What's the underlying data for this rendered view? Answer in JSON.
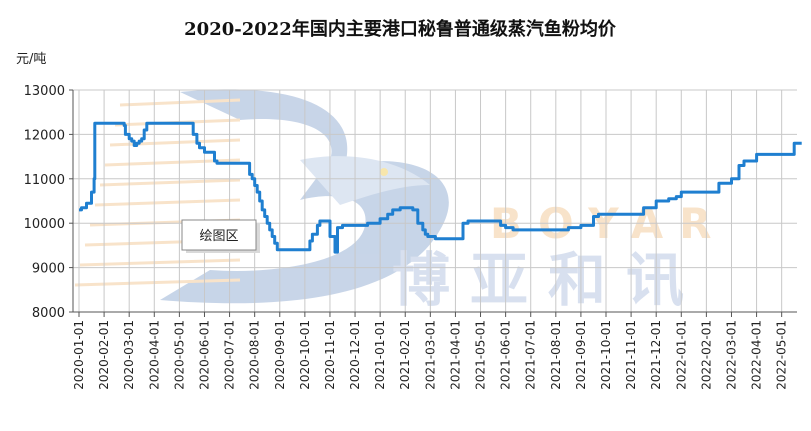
{
  "chart_data": {
    "type": "line",
    "title": "2020-2022年国内主要港口秘鲁普通级蒸汽鱼粉均价",
    "ylabel": "元/吨",
    "ylim": [
      8000,
      13000
    ],
    "yticks": [
      8000,
      9000,
      10000,
      11000,
      12000,
      13000
    ],
    "categories": [
      "2020-01-01",
      "2020-02-01",
      "2020-03-01",
      "2020-04-01",
      "2020-05-01",
      "2020-06-01",
      "2020-07-01",
      "2020-08-01",
      "2020-09-01",
      "2020-10-01",
      "2020-11-01",
      "2020-12-01",
      "2021-01-01",
      "2021-02-01",
      "2021-03-01",
      "2021-04-01",
      "2021-05-01",
      "2021-06-01",
      "2021-07-01",
      "2021-08-01",
      "2021-09-01",
      "2021-10-01",
      "2021-11-01",
      "2021-12-01",
      "2022-01-01",
      "2022-02-01",
      "2022-03-01",
      "2022-04-01",
      "2022-05-01"
    ],
    "grid": true,
    "color": "#1f7fd0",
    "series": [
      {
        "x": [
          0,
          0.1,
          0.3,
          0.5,
          0.6,
          0.63,
          0.7,
          1.0,
          1.5,
          1.7,
          1.8,
          1.85,
          2.0,
          2.1,
          2.2,
          2.3,
          2.4,
          2.5,
          2.6,
          2.7,
          2.8,
          3.0,
          3.5,
          4.0,
          4.5,
          4.55,
          4.7,
          4.8,
          5.0,
          5.3,
          5.4,
          5.5,
          6.0,
          6.3,
          6.8,
          6.9,
          7.0,
          7.1,
          7.2,
          7.3,
          7.4,
          7.5,
          7.6,
          7.7,
          7.8,
          7.9,
          8.0,
          8.3,
          8.5,
          8.8,
          9.0,
          9.2,
          9.3,
          9.5,
          9.6,
          9.8,
          10.0,
          10.2,
          10.3,
          10.5,
          10.6,
          10.7,
          11.0,
          11.5,
          12.0,
          12.3,
          12.5,
          12.8,
          13.0,
          13.3,
          13.5,
          13.7,
          13.8,
          13.9,
          14.0,
          14.1,
          14.2,
          14.5,
          15.0,
          15.3,
          15.5,
          16.0,
          16.5,
          16.8,
          17.0,
          17.3,
          17.5,
          18.0,
          18.5,
          19.0,
          19.5,
          19.9,
          20.0,
          20.3,
          20.5,
          20.7,
          21.0,
          21.5,
          22.0,
          22.5,
          23.0,
          23.5,
          23.8,
          24.0,
          24.5,
          25.0,
          25.5,
          26.0,
          26.3,
          26.5,
          27.0,
          27.5,
          28.0,
          28.5,
          28.8
        ],
        "values": [
          10300,
          10350,
          10450,
          10700,
          11000,
          12250,
          12250,
          12250,
          12250,
          12250,
          12200,
          12000,
          11900,
          11850,
          11750,
          11800,
          11850,
          11900,
          12100,
          12250,
          12250,
          12250,
          12250,
          12250,
          12250,
          12000,
          11800,
          11700,
          11600,
          11600,
          11400,
          11350,
          11350,
          11350,
          11100,
          11000,
          10850,
          10700,
          10500,
          10300,
          10150,
          10000,
          9850,
          9700,
          9550,
          9400,
          9400,
          9400,
          9400,
          9400,
          9400,
          9600,
          9750,
          9950,
          10050,
          10050,
          9700,
          9350,
          9900,
          9950,
          9950,
          9950,
          9950,
          10000,
          10100,
          10200,
          10300,
          10350,
          10350,
          10300,
          10000,
          9850,
          9750,
          9700,
          9700,
          9700,
          9650,
          9650,
          9650,
          10000,
          10050,
          10050,
          10050,
          9950,
          9900,
          9850,
          9850,
          9850,
          9850,
          9850,
          9900,
          9900,
          9950,
          9950,
          10150,
          10200,
          10200,
          10200,
          10200,
          10350,
          10500,
          10550,
          10600,
          10700,
          10700,
          10700,
          10900,
          11000,
          11300,
          11400,
          11550,
          11550,
          11550,
          11800,
          11800
        ]
      }
    ],
    "tooltip": "绘图区"
  },
  "watermark": {
    "latin": "BOYAR",
    "cjk": "博亚和讯"
  }
}
